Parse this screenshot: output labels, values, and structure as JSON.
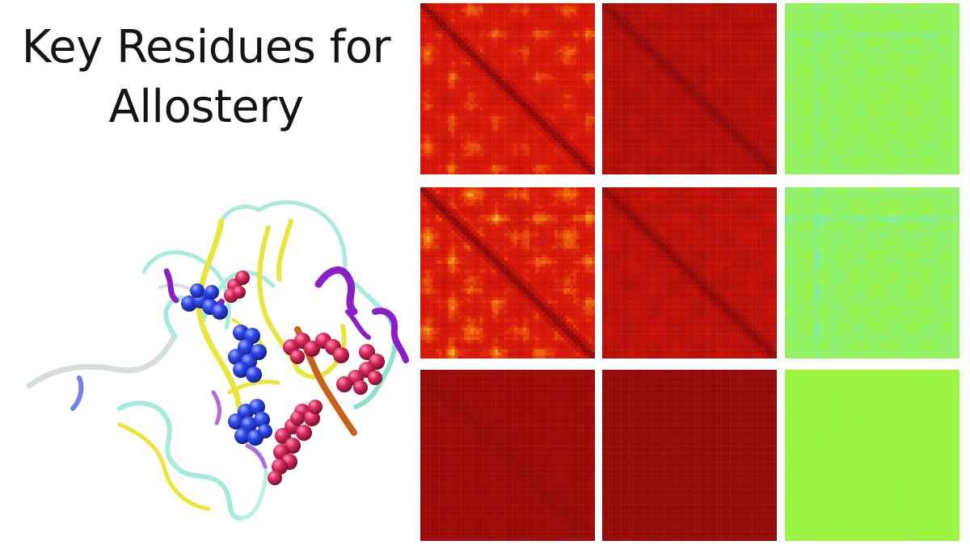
{
  "title": {
    "line1": "Key Residues for",
    "line2": "Allostery"
  },
  "heatmaps": {
    "rows": 3,
    "columns": 3,
    "cells": [
      {
        "row": 1,
        "col": 1,
        "scheme": "red-yellow",
        "intensity": 0.85
      },
      {
        "row": 1,
        "col": 2,
        "scheme": "red-yellow",
        "intensity": 0.35
      },
      {
        "row": 1,
        "col": 3,
        "scheme": "green-blue",
        "intensity": 0.8
      },
      {
        "row": 2,
        "col": 1,
        "scheme": "red-yellow",
        "intensity": 0.9
      },
      {
        "row": 2,
        "col": 2,
        "scheme": "red-yellow",
        "intensity": 0.45
      },
      {
        "row": 2,
        "col": 3,
        "scheme": "green-blue",
        "intensity": 0.9
      },
      {
        "row": 3,
        "col": 1,
        "scheme": "red-yellow",
        "intensity": 0.12
      },
      {
        "row": 3,
        "col": 2,
        "scheme": "red-yellow",
        "intensity": 0.06
      },
      {
        "row": 3,
        "col": 3,
        "scheme": "green-blue",
        "intensity": 0.05
      }
    ]
  },
  "colors": {
    "dark_red": "#8c0a0a",
    "red": "#d81a0a",
    "yellow": "#f6f53a",
    "green": "#9cf53c",
    "cyan": "#63e3ee",
    "blue": "#2a3fd8",
    "residue_blue": "#2f46e6",
    "residue_pink": "#d8265a",
    "helix_purple": "#8a1fc8",
    "sheet_yellow": "#e4e23a",
    "sheet_orange": "#c8621a",
    "coil_cyan": "#9ee8d8",
    "coil_white": "#dcdcdc"
  },
  "structure": {
    "representation": "cartoon",
    "highlighted_residue_groups": [
      {
        "color": "blue"
      },
      {
        "color": "pink"
      }
    ]
  }
}
